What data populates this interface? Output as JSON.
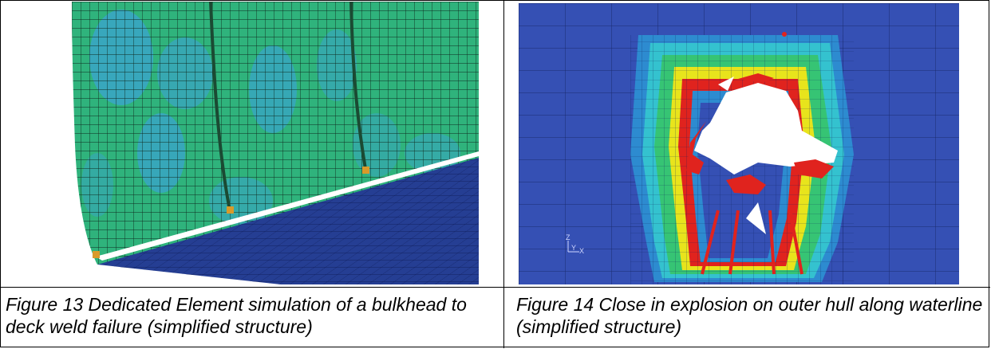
{
  "figures": [
    {
      "caption": "Figure 13 Dedicated Element simulation of a bulkhead to deck weld failure (simplified structure)"
    },
    {
      "caption": "Figure 14 Close in explosion on outer hull along waterline  (simplified structure)",
      "triad_labels": {
        "z": "Z",
        "y": "Y",
        "x": "X"
      }
    }
  ],
  "colors": {
    "shell_green": "#2fb37c",
    "shell_cyan": "#3aa4c8",
    "deck_navy": "#253e93",
    "hull_blue": "#3550b4",
    "damage_red": "#e0231e",
    "damage_yellow": "#e8e41c"
  }
}
